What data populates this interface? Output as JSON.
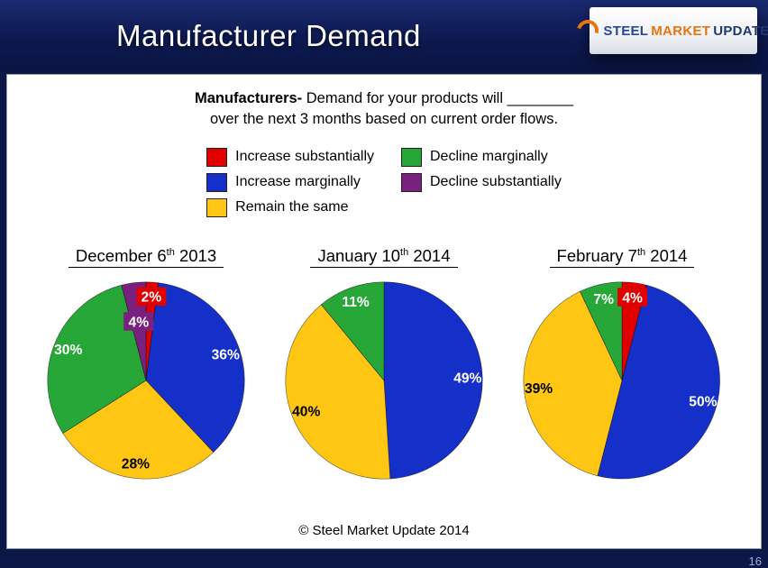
{
  "header": {
    "title": "Manufacturer Demand",
    "logo": {
      "steel": "STEEL",
      "market": "MARKET",
      "update": "UPDATE"
    }
  },
  "question": {
    "bold": "Manufacturers-",
    "line1_rest": " Demand for your products will ________",
    "line2": "over the next 3 months based on current order flows."
  },
  "legend": {
    "items": [
      {
        "label": "Increase substantially",
        "color": "#E00000"
      },
      {
        "label": "Increase marginally",
        "color": "#1430C9"
      },
      {
        "label": "Remain the same",
        "color": "#FFC613"
      },
      {
        "label": "Decline marginally",
        "color": "#27A737"
      },
      {
        "label": "Decline substantially",
        "color": "#7A2180"
      }
    ]
  },
  "chart_data": [
    {
      "type": "pie",
      "title": {
        "pre": "December 6",
        "sup": "th",
        "post": "2013"
      },
      "start_angle_deg": 0,
      "slices": [
        {
          "label": "Increase substantially",
          "value": 2,
          "color": "#E00000",
          "text": "#FFFFFF",
          "callout_box": true
        },
        {
          "label": "Increase marginally",
          "value": 36,
          "color": "#1430C9",
          "text": "#FFFFFF"
        },
        {
          "label": "Remain the same",
          "value": 28,
          "color": "#FFC613",
          "text": "#000000"
        },
        {
          "label": "Decline marginally",
          "value": 30,
          "color": "#27A737",
          "text": "#FFFFFF"
        },
        {
          "label": "Decline substantially",
          "value": 4,
          "color": "#7A2180",
          "text": "#FFFFFF",
          "callout_box": true,
          "label_r": 0.6
        }
      ]
    },
    {
      "type": "pie",
      "title": {
        "pre": "January 10",
        "sup": "th",
        "post": "2014"
      },
      "start_angle_deg": 0,
      "slices": [
        {
          "label": "Increase marginally",
          "value": 49,
          "color": "#1430C9",
          "text": "#FFFFFF"
        },
        {
          "label": "Remain the same",
          "value": 40,
          "color": "#FFC613",
          "text": "#000000"
        },
        {
          "label": "Decline marginally",
          "value": 11,
          "color": "#27A737",
          "text": "#FFFFFF"
        }
      ]
    },
    {
      "type": "pie",
      "title": {
        "pre": "February 7",
        "sup": "th",
        "post": "2014"
      },
      "start_angle_deg": 0,
      "slices": [
        {
          "label": "Increase substantially",
          "value": 4,
          "color": "#E00000",
          "text": "#FFFFFF",
          "callout_box": true
        },
        {
          "label": "Increase marginally",
          "value": 50,
          "color": "#1430C9",
          "text": "#FFFFFF"
        },
        {
          "label": "Remain the same",
          "value": 39,
          "color": "#FFC613",
          "text": "#000000"
        },
        {
          "label": "Decline marginally",
          "value": 7,
          "color": "#27A737",
          "text": "#FFFFFF"
        }
      ]
    }
  ],
  "footer": {
    "copyright": "© Steel Market Update 2014",
    "page_number": "16"
  }
}
